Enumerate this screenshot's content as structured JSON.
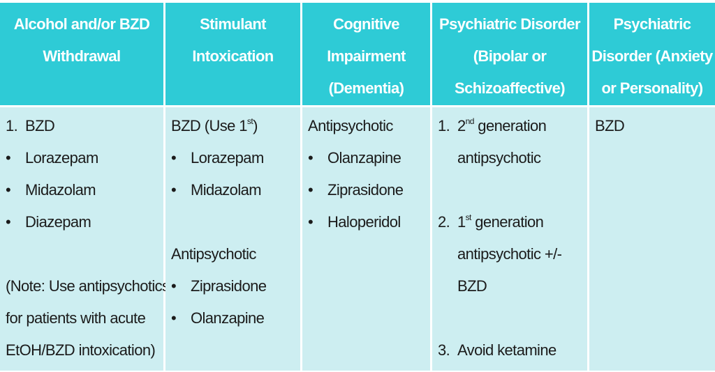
{
  "colors": {
    "header_bg": "#2ecbd6",
    "body_bg": "#cdeef1",
    "header_text": "#ffffff"
  },
  "headers": [
    {
      "lines": [
        "Alcohol and/or BZD",
        "Withdrawal"
      ]
    },
    {
      "lines": [
        "Stimulant",
        "Intoxication"
      ]
    },
    {
      "lines": [
        "Cognitive",
        "Impairment",
        "(Dementia)"
      ]
    },
    {
      "lines": [
        "Psychiatric Disorder",
        "(Bipolar or",
        "Schizoaffective)"
      ]
    },
    {
      "lines": [
        "Psychiatric",
        "Disorder (Anxiety",
        "or Personality)"
      ]
    }
  ],
  "cells": [
    {
      "lines": [
        {
          "m": "1.",
          "t": "BZD"
        },
        {
          "m": "•",
          "t": "Lorazepam"
        },
        {
          "m": "•",
          "t": "Midazolam"
        },
        {
          "m": "•",
          "t": "Diazepam"
        },
        {
          "t": ""
        },
        {
          "t": "(Note: Use antipsychotics"
        },
        {
          "t": "for patients with acute"
        },
        {
          "t": "EtOH/BZD intoxication)"
        }
      ]
    },
    {
      "lines": [
        {
          "t": "BZD  (Use 1",
          "sup": "st",
          "r": ")"
        },
        {
          "m": "•",
          "t": "Lorazepam"
        },
        {
          "m": "•",
          "t": "Midazolam"
        },
        {
          "t": ""
        },
        {
          "t": "Antipsychotic"
        },
        {
          "m": "•",
          "t": "Ziprasidone"
        },
        {
          "m": "•",
          "t": "Olanzapine"
        }
      ]
    },
    {
      "lines": [
        {
          "t": "Antipsychotic"
        },
        {
          "m": "•",
          "t": "Olanzapine"
        },
        {
          "m": "•",
          "t": "Ziprasidone"
        },
        {
          "m": "•",
          "t": "Haloperidol"
        }
      ]
    },
    {
      "lines": [
        {
          "m": "1.",
          "t": "2",
          "sup": "nd",
          "r": " generation"
        },
        {
          "m": "",
          "t": "antipsychotic"
        },
        {
          "t": ""
        },
        {
          "m": "2.",
          "t": "1",
          "sup": "st",
          "r": " generation"
        },
        {
          "m": "",
          "t": "antipsychotic +/-"
        },
        {
          "m": "",
          "t": "BZD"
        },
        {
          "t": ""
        },
        {
          "m": "3.",
          "t": "Avoid ketamine"
        }
      ]
    },
    {
      "lines": [
        {
          "t": "BZD"
        }
      ]
    }
  ]
}
